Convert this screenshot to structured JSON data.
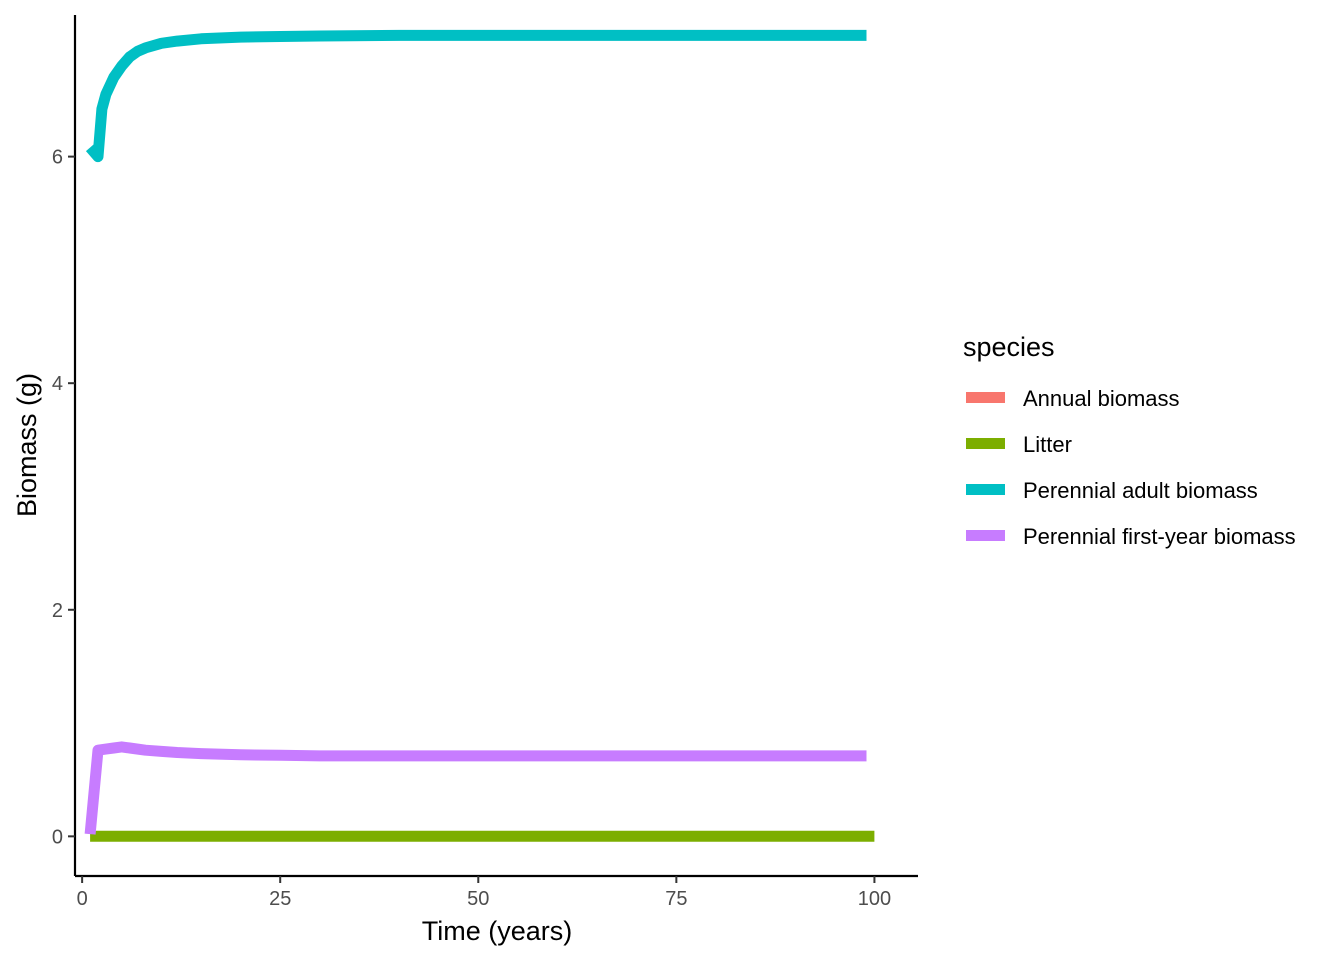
{
  "chart_data": {
    "type": "line",
    "xlabel": "Time (years)",
    "ylabel": "Biomass (g)",
    "xlim": [
      -0.9,
      105.5
    ],
    "ylim": [
      -0.35,
      7.25
    ],
    "x_ticks": [
      0,
      25,
      50,
      75,
      100
    ],
    "y_ticks": [
      0,
      2,
      4,
      6
    ],
    "grid": false,
    "legend": {
      "title": "species",
      "placement": "right"
    },
    "series": [
      {
        "name": "Annual biomass",
        "color": "#F8766D",
        "x": [],
        "values": []
      },
      {
        "name": "Litter",
        "color": "#7CAE00",
        "x": [
          1,
          100
        ],
        "values": [
          0,
          0
        ]
      },
      {
        "name": "Perennial adult biomass",
        "color": "#00BFC4",
        "x": [
          1,
          2,
          2.5,
          3,
          4,
          5,
          6,
          7,
          8,
          10,
          12,
          15,
          20,
          25,
          30,
          40,
          50,
          60,
          70,
          80,
          90,
          99
        ],
        "values": [
          6.08,
          6.0,
          6.42,
          6.55,
          6.7,
          6.8,
          6.88,
          6.93,
          6.96,
          7.0,
          7.02,
          7.04,
          7.055,
          7.06,
          7.065,
          7.07,
          7.07,
          7.07,
          7.07,
          7.07,
          7.07,
          7.07
        ]
      },
      {
        "name": "Perennial first-year biomass",
        "color": "#C77CFF",
        "x": [
          1,
          2,
          3,
          4,
          5,
          6,
          8,
          10,
          12,
          15,
          20,
          25,
          30,
          40,
          50,
          60,
          70,
          80,
          90,
          99
        ],
        "values": [
          0.02,
          0.76,
          0.77,
          0.78,
          0.79,
          0.78,
          0.76,
          0.75,
          0.74,
          0.73,
          0.72,
          0.715,
          0.71,
          0.71,
          0.71,
          0.71,
          0.71,
          0.71,
          0.71,
          0.71
        ]
      }
    ]
  }
}
